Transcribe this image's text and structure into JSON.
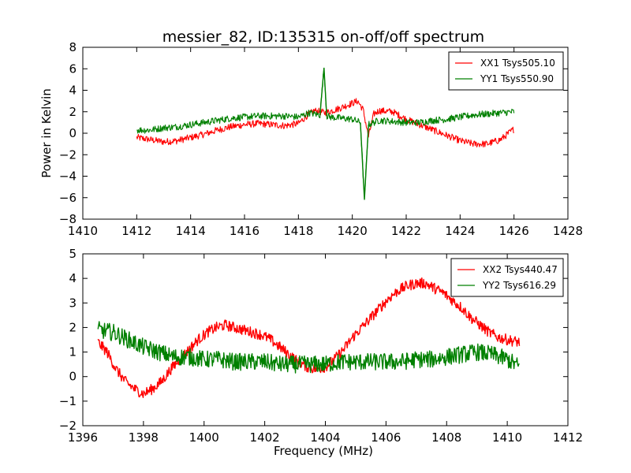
{
  "chart_data": [
    {
      "type": "line",
      "title": "messier_82, ID:135315 on-off/off spectrum",
      "xlabel": "",
      "ylabel": "Power in Kelvin",
      "xlim": [
        1410,
        1428
      ],
      "ylim": [
        -8,
        8
      ],
      "xticks": [
        "1410",
        "1412",
        "1414",
        "1416",
        "1418",
        "1420",
        "1422",
        "1424",
        "1426",
        "1428"
      ],
      "yticks": [
        "8",
        "6",
        "4",
        "2",
        "0",
        "−2",
        "−4",
        "−6",
        "−8"
      ],
      "legend_position": "top-right",
      "grid": false,
      "series": [
        {
          "name": "XX1 Tsys505.10",
          "color": "#ff0000",
          "x": [
            1412.0,
            1412.5,
            1413.0,
            1413.5,
            1414.0,
            1414.5,
            1415.0,
            1415.5,
            1416.0,
            1416.5,
            1417.0,
            1417.5,
            1418.0,
            1418.3,
            1418.6,
            1419.0,
            1419.5,
            1420.0,
            1420.2,
            1420.4,
            1420.6,
            1420.8,
            1421.0,
            1421.5,
            1422.0,
            1422.5,
            1423.0,
            1423.5,
            1424.0,
            1424.5,
            1425.0,
            1425.5,
            1426.0
          ],
          "y": [
            -0.4,
            -0.6,
            -0.8,
            -0.7,
            -0.4,
            -0.1,
            0.3,
            0.6,
            0.8,
            0.9,
            0.8,
            0.7,
            0.9,
            1.6,
            2.1,
            1.9,
            2.3,
            2.8,
            3.0,
            2.2,
            -0.3,
            1.8,
            2.1,
            2.0,
            1.3,
            0.8,
            0.3,
            -0.2,
            -0.7,
            -1.0,
            -1.0,
            -0.6,
            0.4
          ]
        },
        {
          "name": "YY1 Tsys550.90",
          "color": "#008000",
          "x": [
            1412.0,
            1412.5,
            1413.0,
            1413.5,
            1414.0,
            1414.5,
            1415.0,
            1415.5,
            1416.0,
            1416.5,
            1417.0,
            1417.5,
            1418.0,
            1418.4,
            1418.8,
            1418.95,
            1419.05,
            1419.2,
            1419.6,
            1420.0,
            1420.3,
            1420.45,
            1420.6,
            1421.0,
            1421.5,
            1422.0,
            1422.5,
            1423.0,
            1423.5,
            1424.0,
            1424.5,
            1425.0,
            1425.5,
            1426.0
          ],
          "y": [
            0.3,
            0.3,
            0.5,
            0.6,
            0.8,
            1.0,
            1.2,
            1.4,
            1.5,
            1.6,
            1.6,
            1.6,
            1.5,
            1.9,
            1.7,
            6.1,
            1.6,
            1.5,
            1.4,
            1.3,
            1.0,
            -6.2,
            0.8,
            1.2,
            1.1,
            1.0,
            1.0,
            1.2,
            1.3,
            1.5,
            1.7,
            1.8,
            1.9,
            2.0
          ]
        }
      ]
    },
    {
      "type": "line",
      "title": "",
      "xlabel": "Frequency (MHz)",
      "ylabel": "",
      "xlim": [
        1396,
        1412
      ],
      "ylim": [
        -2,
        5
      ],
      "xticks": [
        "1396",
        "1398",
        "1400",
        "1402",
        "1404",
        "1406",
        "1408",
        "1410",
        "1412"
      ],
      "yticks": [
        "5",
        "4",
        "3",
        "2",
        "1",
        "0",
        "−1",
        "−2"
      ],
      "legend_position": "top-right",
      "grid": false,
      "series": [
        {
          "name": "XX2 Tsys440.47",
          "color": "#ff0000",
          "x": [
            1396.5,
            1396.8,
            1397.1,
            1397.4,
            1397.7,
            1398.0,
            1398.3,
            1398.6,
            1398.9,
            1399.2,
            1399.5,
            1399.8,
            1400.1,
            1400.4,
            1400.7,
            1401.0,
            1401.3,
            1401.6,
            1401.9,
            1402.2,
            1402.5,
            1402.8,
            1403.1,
            1403.4,
            1403.7,
            1404.0,
            1404.3,
            1404.6,
            1404.9,
            1405.2,
            1405.5,
            1405.8,
            1406.1,
            1406.4,
            1406.7,
            1407.0,
            1407.3,
            1407.6,
            1407.9,
            1408.2,
            1408.5,
            1408.8,
            1409.1,
            1409.4,
            1409.7,
            1410.0,
            1410.4
          ],
          "y": [
            1.4,
            1.0,
            0.3,
            -0.2,
            -0.5,
            -0.7,
            -0.5,
            -0.2,
            0.3,
            0.7,
            1.1,
            1.5,
            1.8,
            2.0,
            2.1,
            2.0,
            1.9,
            1.8,
            1.7,
            1.5,
            1.2,
            0.9,
            0.6,
            0.4,
            0.3,
            0.4,
            0.7,
            1.1,
            1.6,
            2.0,
            2.4,
            2.8,
            3.2,
            3.5,
            3.7,
            3.8,
            3.8,
            3.6,
            3.4,
            3.1,
            2.8,
            2.4,
            2.1,
            1.8,
            1.6,
            1.5,
            1.4
          ]
        },
        {
          "name": "YY2 Tsys616.29",
          "color": "#008000",
          "x": [
            1396.5,
            1397.0,
            1397.5,
            1398.0,
            1398.5,
            1399.0,
            1399.5,
            1400.0,
            1400.5,
            1401.0,
            1401.5,
            1402.0,
            1402.5,
            1403.0,
            1403.5,
            1404.0,
            1404.5,
            1405.0,
            1405.5,
            1406.0,
            1406.5,
            1407.0,
            1407.5,
            1408.0,
            1408.5,
            1409.0,
            1409.5,
            1410.0,
            1410.4
          ],
          "y": [
            1.9,
            1.8,
            1.5,
            1.2,
            1.0,
            0.8,
            0.8,
            0.7,
            0.7,
            0.6,
            0.6,
            0.6,
            0.5,
            0.5,
            0.5,
            0.5,
            0.6,
            0.6,
            0.6,
            0.6,
            0.6,
            0.7,
            0.7,
            0.8,
            0.9,
            1.0,
            0.9,
            0.7,
            0.4
          ]
        }
      ]
    }
  ]
}
